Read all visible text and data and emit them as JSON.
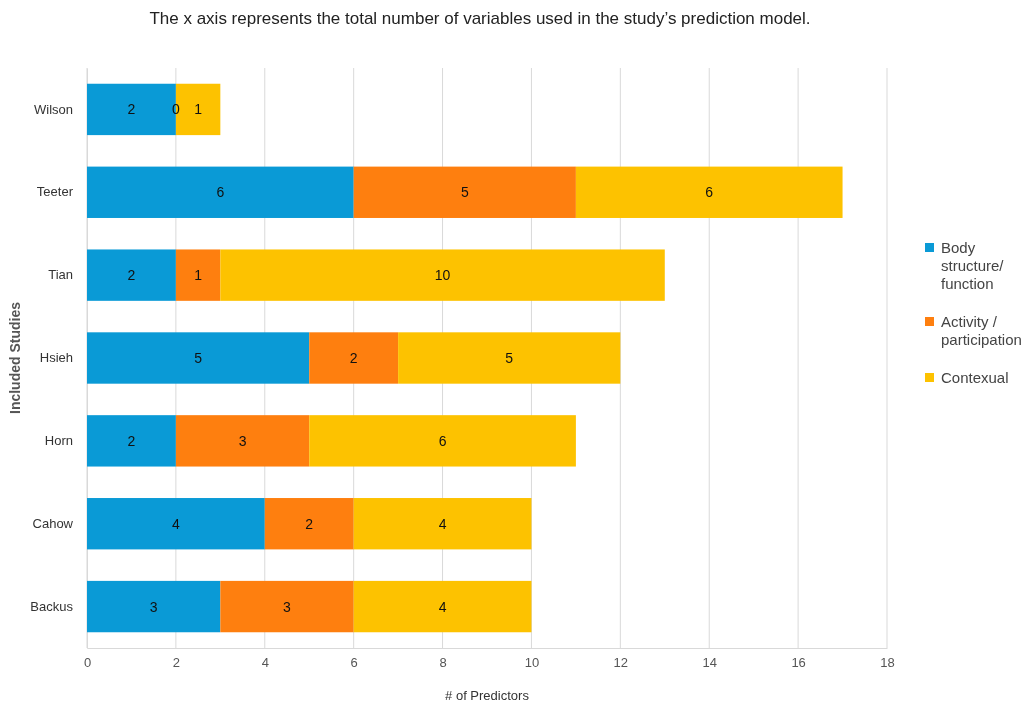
{
  "chart_data": {
    "type": "bar",
    "orientation": "horizontal",
    "stacked": true,
    "title": "The x axis represents the total number of variables used in the study’s prediction model.",
    "xlabel": "# of Predictors",
    "ylabel": "Included Studies",
    "categories": [
      "Wilson",
      "Teeter",
      "Tian",
      "Hsieh",
      "Horn",
      "Cahow",
      "Backus"
    ],
    "series": [
      {
        "name": "Body structure/ function",
        "color": "#0a9ad6",
        "values": [
          2,
          6,
          2,
          5,
          2,
          4,
          3
        ]
      },
      {
        "name": "Activity / participation",
        "color": "#fe7f0f",
        "values": [
          0,
          5,
          1,
          2,
          3,
          2,
          3
        ]
      },
      {
        "name": "Contexual",
        "color": "#fdc200",
        "values": [
          1,
          6,
          10,
          5,
          6,
          4,
          4
        ]
      }
    ],
    "xlim": [
      0,
      18
    ],
    "xticks": [
      0,
      2,
      4,
      6,
      8,
      10,
      12,
      14,
      16,
      18
    ],
    "grid": "x",
    "legend": "right",
    "data_labels": true
  }
}
